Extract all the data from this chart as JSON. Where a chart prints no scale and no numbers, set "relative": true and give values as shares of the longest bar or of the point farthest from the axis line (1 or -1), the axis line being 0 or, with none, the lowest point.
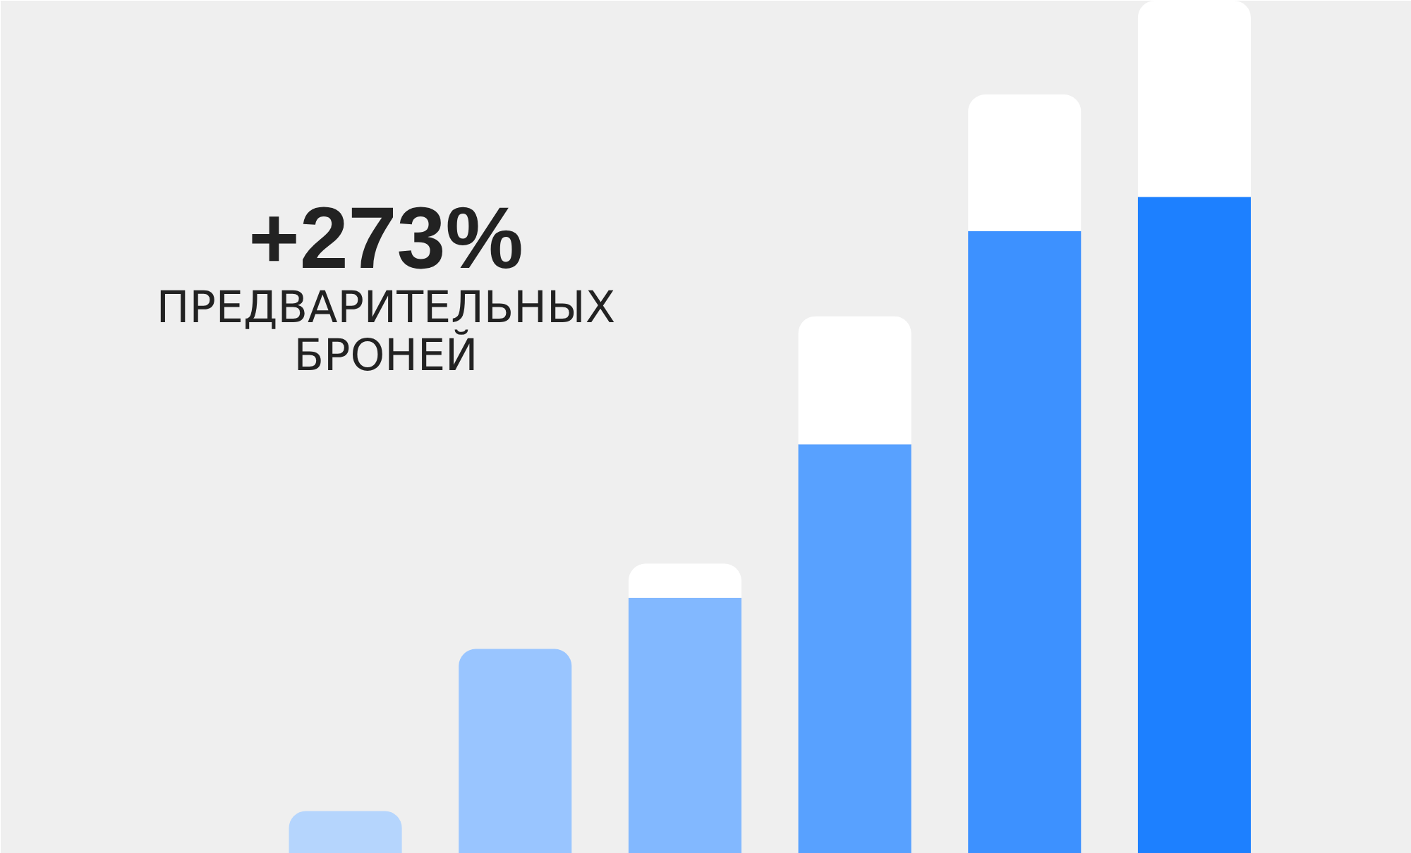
{
  "chart_data": {
    "type": "bar",
    "title": "+273%",
    "subtitle": "ПРЕДВАРИТЕЛЬНЫХ БРОНЕЙ",
    "relative": true,
    "stacked": true,
    "categories": [
      null,
      null,
      null,
      null,
      null,
      null
    ],
    "series": [
      {
        "colors": [
          "#b5d5fd",
          "#99c5ff",
          "#82b8ff",
          "#58a1ff",
          "#3d91ff",
          "#1d80ff"
        ],
        "values": [
          0.05,
          0.24,
          0.3,
          0.48,
          0.73,
          0.77
        ]
      },
      {
        "color": "#ffffff",
        "values": [
          null,
          null,
          0.04,
          0.15,
          0.16,
          0.23
        ]
      }
    ]
  }
}
